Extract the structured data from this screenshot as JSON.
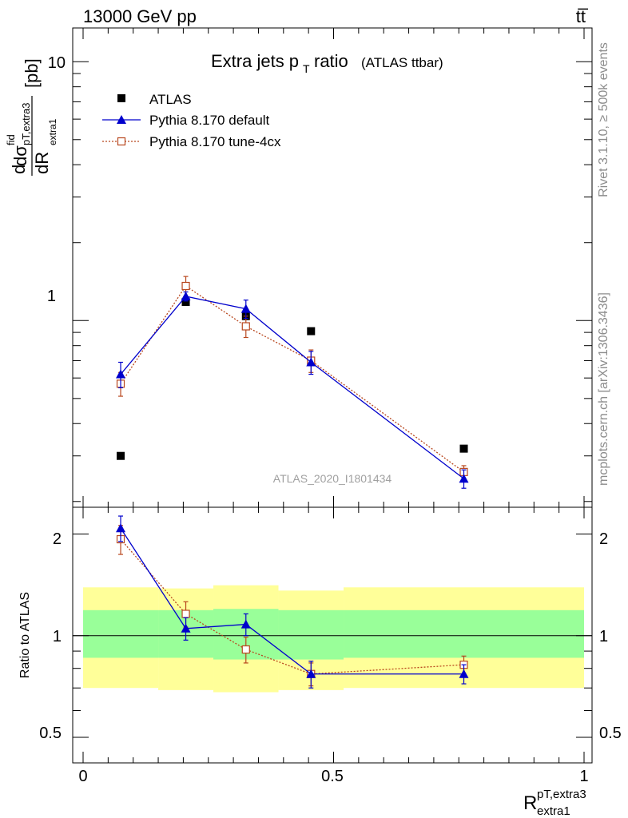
{
  "header": {
    "left": "13000 GeV pp",
    "right": "tt̅"
  },
  "side_labels": {
    "rivet": "Rivet 3.1.10, ≥ 500k events",
    "mcplots": "mcplots.cern.ch [arXiv:1306.3436]"
  },
  "analysis_tag": "ATLAS_2020_I1801434",
  "colors": {
    "data": "#000000",
    "default": "#0000cc",
    "tune": "#b8471e",
    "band_outer": "#ffff99",
    "band_inner": "#99ff99"
  },
  "chart_data": [
    {
      "type": "scatter",
      "title": "Extra jets p",
      "title_sub": "T",
      "title_tail": "ratio",
      "title_note": "(ATLAS ttbar)",
      "ylabel": "[pb]",
      "yscale": "log",
      "xlim": [
        -0.02,
        1.01
      ],
      "ylim": [
        0.19,
        13.5
      ],
      "ytick_labels": [
        "1",
        "10"
      ],
      "legend_position": "top-left",
      "series": [
        {
          "name": "ATLAS",
          "x": [
            0.075,
            0.205,
            0.325,
            0.455,
            0.76
          ],
          "y": [
            0.3,
            1.18,
            1.04,
            0.91,
            0.32
          ]
        },
        {
          "name": "Pythia 8.170 default",
          "x": [
            0.075,
            0.205,
            0.325,
            0.455,
            0.76
          ],
          "y": [
            0.62,
            1.24,
            1.11,
            0.69,
            0.245
          ],
          "err": [
            0.07,
            0.05,
            0.09,
            0.07,
            0.02
          ]
        },
        {
          "name": "Pythia 8.170 tune-4cx",
          "x": [
            0.075,
            0.205,
            0.325,
            0.455,
            0.76
          ],
          "y": [
            0.57,
            1.36,
            0.95,
            0.7,
            0.26
          ],
          "err": [
            0.06,
            0.12,
            0.09,
            0.07,
            0.015
          ]
        }
      ]
    },
    {
      "type": "scatter",
      "ylabel": "Ratio to ATLAS",
      "xlabel": "R",
      "xlabel_sup": "pT,extra3",
      "xlabel_sub": "extra1",
      "yscale": "log",
      "xlim": [
        -0.02,
        1.01
      ],
      "ylim": [
        0.42,
        2.4
      ],
      "xtick_labels": [
        "0",
        "0.5",
        "1"
      ],
      "ytick_labels": [
        "0.5",
        "1",
        "2"
      ],
      "bands": [
        {
          "x0": 0.0,
          "x1": 0.15,
          "outer": [
            0.7,
            1.39
          ],
          "inner": [
            0.86,
            1.19
          ]
        },
        {
          "x0": 0.15,
          "x1": 0.26,
          "outer": [
            0.69,
            1.38
          ],
          "inner": [
            0.86,
            1.19
          ]
        },
        {
          "x0": 0.26,
          "x1": 0.39,
          "outer": [
            0.68,
            1.41
          ],
          "inner": [
            0.85,
            1.2
          ]
        },
        {
          "x0": 0.39,
          "x1": 0.52,
          "outer": [
            0.69,
            1.36
          ],
          "inner": [
            0.85,
            1.19
          ]
        },
        {
          "x0": 0.52,
          "x1": 1.0,
          "outer": [
            0.7,
            1.39
          ],
          "inner": [
            0.86,
            1.19
          ]
        }
      ],
      "series": [
        {
          "name": "Pythia 8.170 default",
          "x": [
            0.075,
            0.205,
            0.325,
            0.455,
            0.76
          ],
          "y": [
            2.08,
            1.05,
            1.08,
            0.77,
            0.77
          ],
          "err": [
            0.18,
            0.08,
            0.08,
            0.07,
            0.05
          ]
        },
        {
          "name": "Pythia 8.170 tune-4cx",
          "x": [
            0.075,
            0.205,
            0.325,
            0.455,
            0.76
          ],
          "y": [
            1.93,
            1.16,
            0.91,
            0.77,
            0.82
          ],
          "err": [
            0.19,
            0.1,
            0.08,
            0.06,
            0.05
          ]
        }
      ]
    }
  ]
}
